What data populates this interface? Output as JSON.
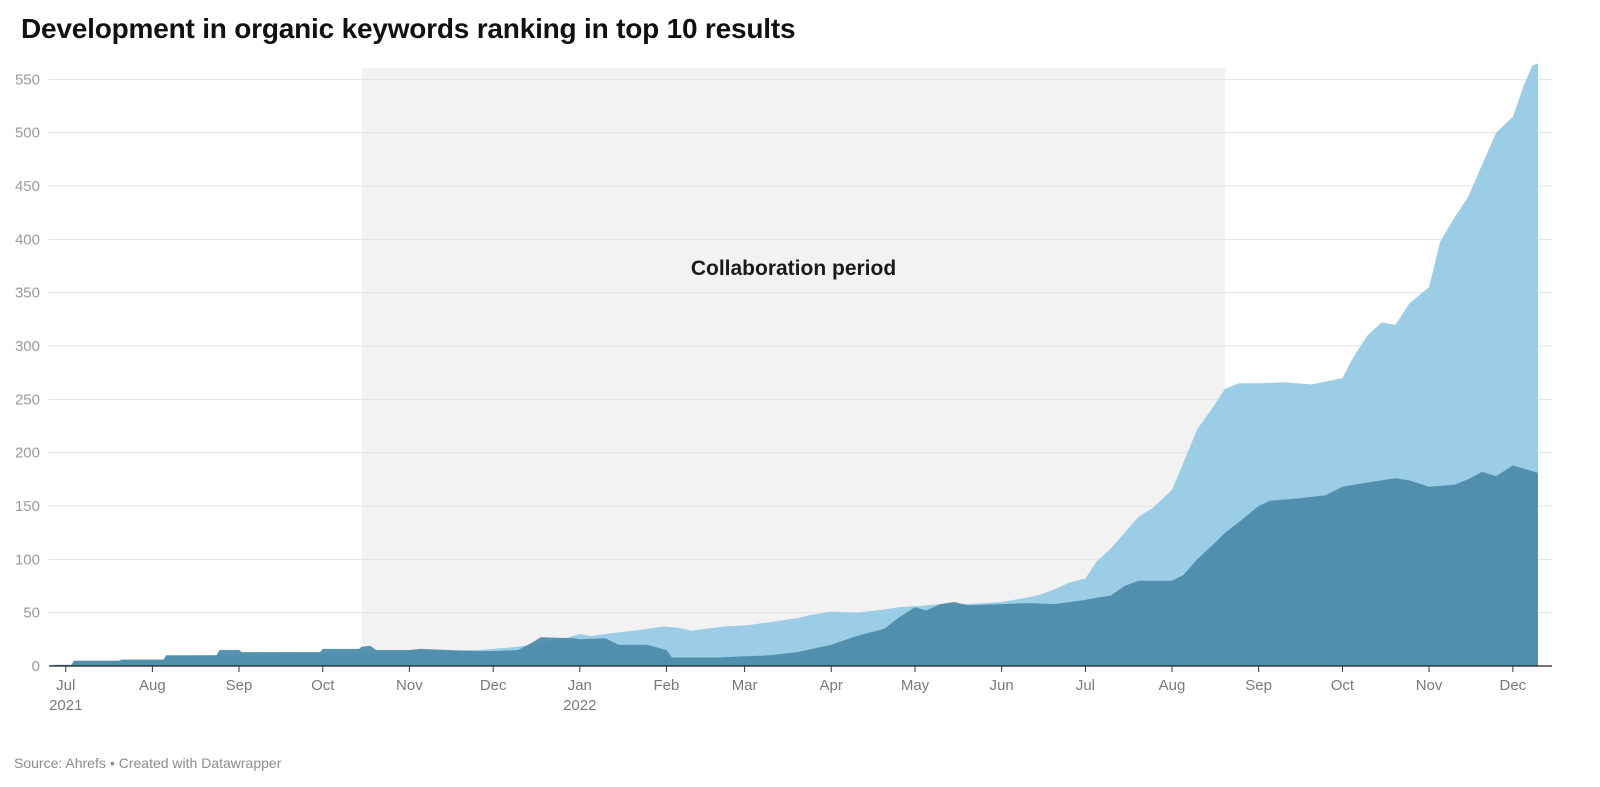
{
  "title": "Development in organic keywords ranking in top 10 results",
  "footer": {
    "source": "Source: Ahrefs",
    "separator": "•",
    "credit": "Created with Datawrapper"
  },
  "colors": {
    "light_area": "#9ccde6",
    "dark_area": "#4a8aa8",
    "highlight_band": "#f2f2f2",
    "grid": "#e3e3e3",
    "tick_label": "#9a9a9a",
    "axis_label": "#7a7a7a"
  },
  "chart_data": {
    "type": "area",
    "stacked": false,
    "x_range": [
      "2021-06-25",
      "2022-12-10"
    ],
    "ylim": [
      0,
      570
    ],
    "y_ticks": [
      0,
      50,
      100,
      150,
      200,
      250,
      300,
      350,
      400,
      450,
      500,
      550
    ],
    "grid": true,
    "x_ticks": [
      {
        "date": "2021-07-01",
        "label": "Jul",
        "sublabel": "2021"
      },
      {
        "date": "2021-08-01",
        "label": "Aug"
      },
      {
        "date": "2021-09-01",
        "label": "Sep"
      },
      {
        "date": "2021-10-01",
        "label": "Oct"
      },
      {
        "date": "2021-11-01",
        "label": "Nov"
      },
      {
        "date": "2021-12-01",
        "label": "Dec"
      },
      {
        "date": "2022-01-01",
        "label": "Jan",
        "sublabel": "2022"
      },
      {
        "date": "2022-02-01",
        "label": "Feb"
      },
      {
        "date": "2022-03-01",
        "label": "Mar"
      },
      {
        "date": "2022-04-01",
        "label": "Apr"
      },
      {
        "date": "2022-05-01",
        "label": "May"
      },
      {
        "date": "2022-06-01",
        "label": "Jun"
      },
      {
        "date": "2022-07-01",
        "label": "Jul"
      },
      {
        "date": "2022-08-01",
        "label": "Aug"
      },
      {
        "date": "2022-09-01",
        "label": "Sep"
      },
      {
        "date": "2022-10-01",
        "label": "Oct"
      },
      {
        "date": "2022-11-01",
        "label": "Nov"
      },
      {
        "date": "2022-12-01",
        "label": "Dec"
      }
    ],
    "highlight": {
      "label": "Collaboration period",
      "start": "2021-10-15",
      "end": "2022-08-20"
    },
    "series": [
      {
        "color": "#9ccde6",
        "points": [
          [
            "2021-06-25",
            0
          ],
          [
            "2021-06-27",
            1
          ],
          [
            "2021-07-03",
            1
          ],
          [
            "2021-07-04",
            5
          ],
          [
            "2021-07-20",
            5
          ],
          [
            "2021-07-21",
            6
          ],
          [
            "2021-08-05",
            6
          ],
          [
            "2021-08-06",
            9
          ],
          [
            "2021-08-20",
            10
          ],
          [
            "2021-09-01",
            10
          ],
          [
            "2021-09-15",
            11
          ],
          [
            "2021-10-01",
            12
          ],
          [
            "2021-10-15",
            12
          ],
          [
            "2021-10-25",
            13
          ],
          [
            "2021-11-10",
            14
          ],
          [
            "2021-11-25",
            15
          ],
          [
            "2021-12-01",
            16
          ],
          [
            "2021-12-10",
            18
          ],
          [
            "2021-12-20",
            22
          ],
          [
            "2021-12-28",
            27
          ],
          [
            "2022-01-01",
            30
          ],
          [
            "2022-01-05",
            28
          ],
          [
            "2022-01-10",
            30
          ],
          [
            "2022-01-20",
            33
          ],
          [
            "2022-01-31",
            37
          ],
          [
            "2022-02-05",
            36
          ],
          [
            "2022-02-10",
            33
          ],
          [
            "2022-02-15",
            35
          ],
          [
            "2022-02-22",
            37
          ],
          [
            "2022-03-01",
            38
          ],
          [
            "2022-03-10",
            41
          ],
          [
            "2022-03-20",
            45
          ],
          [
            "2022-03-25",
            48
          ],
          [
            "2022-04-01",
            51
          ],
          [
            "2022-04-10",
            50
          ],
          [
            "2022-04-20",
            53
          ],
          [
            "2022-04-25",
            55
          ],
          [
            "2022-05-01",
            56
          ],
          [
            "2022-05-10",
            58
          ],
          [
            "2022-05-20",
            58
          ],
          [
            "2022-06-01",
            60
          ],
          [
            "2022-06-10",
            64
          ],
          [
            "2022-06-15",
            67
          ],
          [
            "2022-06-20",
            72
          ],
          [
            "2022-06-25",
            78
          ],
          [
            "2022-07-01",
            82
          ],
          [
            "2022-07-05",
            98
          ],
          [
            "2022-07-10",
            110
          ],
          [
            "2022-07-15",
            125
          ],
          [
            "2022-07-20",
            140
          ],
          [
            "2022-07-25",
            148
          ],
          [
            "2022-08-01",
            165
          ],
          [
            "2022-08-05",
            190
          ],
          [
            "2022-08-10",
            222
          ],
          [
            "2022-08-15",
            240
          ],
          [
            "2022-08-20",
            260
          ],
          [
            "2022-08-25",
            265
          ],
          [
            "2022-09-01",
            265
          ],
          [
            "2022-09-10",
            266
          ],
          [
            "2022-09-20",
            264
          ],
          [
            "2022-10-01",
            270
          ],
          [
            "2022-10-05",
            290
          ],
          [
            "2022-10-10",
            310
          ],
          [
            "2022-10-15",
            322
          ],
          [
            "2022-10-20",
            320
          ],
          [
            "2022-10-25",
            340
          ],
          [
            "2022-11-01",
            355
          ],
          [
            "2022-11-05",
            398
          ],
          [
            "2022-11-10",
            420
          ],
          [
            "2022-11-15",
            440
          ],
          [
            "2022-11-20",
            470
          ],
          [
            "2022-11-25",
            500
          ],
          [
            "2022-12-01",
            515
          ],
          [
            "2022-12-05",
            545
          ],
          [
            "2022-12-08",
            563
          ],
          [
            "2022-12-10",
            565
          ]
        ]
      },
      {
        "color": "#4a8aa8",
        "points": [
          [
            "2021-06-25",
            0
          ],
          [
            "2021-06-27",
            1
          ],
          [
            "2021-07-03",
            1
          ],
          [
            "2021-07-04",
            5
          ],
          [
            "2021-07-20",
            5
          ],
          [
            "2021-07-21",
            6
          ],
          [
            "2021-08-05",
            6
          ],
          [
            "2021-08-06",
            10
          ],
          [
            "2021-08-20",
            10
          ],
          [
            "2021-08-24",
            10
          ],
          [
            "2021-08-25",
            15
          ],
          [
            "2021-09-01",
            15
          ],
          [
            "2021-09-02",
            13
          ],
          [
            "2021-09-30",
            13
          ],
          [
            "2021-10-01",
            16
          ],
          [
            "2021-10-14",
            16
          ],
          [
            "2021-10-15",
            18
          ],
          [
            "2021-10-18",
            19
          ],
          [
            "2021-10-20",
            15
          ],
          [
            "2021-11-01",
            15
          ],
          [
            "2021-11-05",
            16
          ],
          [
            "2021-11-15",
            15
          ],
          [
            "2021-11-25",
            14
          ],
          [
            "2021-12-01",
            14
          ],
          [
            "2021-12-10",
            15
          ],
          [
            "2021-12-15",
            22
          ],
          [
            "2021-12-18",
            27
          ],
          [
            "2021-12-30",
            26
          ],
          [
            "2022-01-01",
            25
          ],
          [
            "2022-01-10",
            26
          ],
          [
            "2022-01-15",
            20
          ],
          [
            "2022-01-25",
            20
          ],
          [
            "2022-02-01",
            15
          ],
          [
            "2022-02-03",
            8
          ],
          [
            "2022-02-20",
            8
          ],
          [
            "2022-02-28",
            9
          ],
          [
            "2022-03-10",
            10
          ],
          [
            "2022-03-20",
            13
          ],
          [
            "2022-04-01",
            20
          ],
          [
            "2022-04-10",
            28
          ],
          [
            "2022-04-20",
            35
          ],
          [
            "2022-04-25",
            45
          ],
          [
            "2022-05-01",
            55
          ],
          [
            "2022-05-05",
            52
          ],
          [
            "2022-05-10",
            58
          ],
          [
            "2022-05-15",
            60
          ],
          [
            "2022-05-20",
            57
          ],
          [
            "2022-06-01",
            58
          ],
          [
            "2022-06-10",
            59
          ],
          [
            "2022-06-20",
            58
          ],
          [
            "2022-07-01",
            62
          ],
          [
            "2022-07-05",
            64
          ],
          [
            "2022-07-10",
            66
          ],
          [
            "2022-07-15",
            75
          ],
          [
            "2022-07-20",
            80
          ],
          [
            "2022-08-01",
            80
          ],
          [
            "2022-08-05",
            85
          ],
          [
            "2022-08-10",
            100
          ],
          [
            "2022-08-15",
            112
          ],
          [
            "2022-08-20",
            125
          ],
          [
            "2022-08-25",
            135
          ],
          [
            "2022-09-01",
            150
          ],
          [
            "2022-09-05",
            155
          ],
          [
            "2022-09-15",
            157
          ],
          [
            "2022-09-25",
            160
          ],
          [
            "2022-10-01",
            168
          ],
          [
            "2022-10-10",
            172
          ],
          [
            "2022-10-20",
            176
          ],
          [
            "2022-10-25",
            174
          ],
          [
            "2022-11-01",
            168
          ],
          [
            "2022-11-10",
            170
          ],
          [
            "2022-11-15",
            175
          ],
          [
            "2022-11-20",
            182
          ],
          [
            "2022-11-25",
            178
          ],
          [
            "2022-12-01",
            188
          ],
          [
            "2022-12-05",
            185
          ],
          [
            "2022-12-10",
            181
          ]
        ]
      }
    ]
  }
}
